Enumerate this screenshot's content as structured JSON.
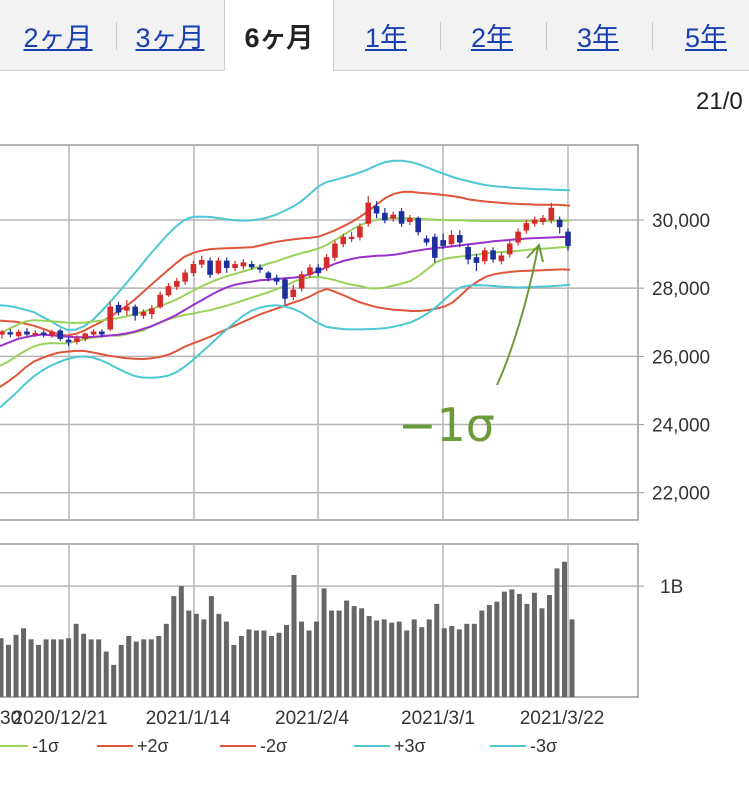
{
  "tabs": [
    {
      "label": "2ヶ月",
      "active": false
    },
    {
      "label": "3ヶ月",
      "active": false
    },
    {
      "label": "6ヶ月",
      "active": true
    },
    {
      "label": "1年",
      "active": false
    },
    {
      "label": "2年",
      "active": false
    },
    {
      "label": "3年",
      "active": false
    },
    {
      "label": "5年",
      "active": false
    }
  ],
  "date_label": "21/0",
  "annotation": "−1σ",
  "chart_data": [
    {
      "type": "candlestick",
      "ylim": [
        21200,
        32200
      ],
      "yticks": [
        22000,
        24000,
        26000,
        28000,
        30000
      ],
      "ytick_labels": [
        "22,000",
        "24,000",
        "26,000",
        "28,000",
        "30,000"
      ],
      "x_labels": [
        "2020/12/21",
        "2021/1/14",
        "2021/2/4",
        "2021/3/1",
        "2021/3/22"
      ],
      "x_label_partial": "30",
      "grid": true,
      "colors": {
        "up": "#d62b2b",
        "down": "#1c2f9c",
        "mid": "#9a2fd0",
        "s1": "#9ad25a",
        "s2": "#e0563a",
        "s3": "#4cc8d4"
      },
      "series": [
        {
          "name": "-1σ",
          "values": [
            25720,
            25850,
            26010,
            26160,
            26290,
            26360,
            26390,
            26380,
            26380,
            26440,
            26500,
            26550,
            26570,
            26620,
            26600,
            26640,
            26700,
            26750,
            26870,
            26990,
            27080,
            27150,
            27220,
            27250,
            27310,
            27350,
            27420,
            27480,
            27560,
            27640,
            27720,
            27800,
            27880,
            27970,
            28070,
            28180,
            28280,
            28320,
            28330,
            28290,
            28230,
            28160,
            28100,
            28060,
            28000,
            27990,
            28020,
            28080,
            28140,
            28210,
            28370,
            28560,
            28760,
            28860,
            28900,
            28930,
            28960,
            28990,
            29020,
            29050,
            29060,
            29080,
            29100,
            29130,
            29150,
            29160,
            29180,
            29200,
            29200
          ]
        },
        {
          "name": "+2σ",
          "values": [
            27050,
            27030,
            27010,
            26960,
            26900,
            26820,
            26730,
            26650,
            26610,
            26660,
            26750,
            26880,
            27000,
            27140,
            27300,
            27460,
            27650,
            27870,
            28090,
            28310,
            28520,
            28730,
            28920,
            29030,
            29100,
            29140,
            29160,
            29170,
            29180,
            29190,
            29200,
            29250,
            29310,
            29360,
            29400,
            29430,
            29460,
            29480,
            29510,
            29600,
            29700,
            29820,
            29950,
            30100,
            30270,
            30470,
            30650,
            30770,
            30820,
            30830,
            30800,
            30780,
            30760,
            30730,
            30700,
            30660,
            30600,
            30570,
            30540,
            30520,
            30500,
            30480,
            30470,
            30460,
            30450,
            30450,
            30450,
            30440,
            30420
          ]
        },
        {
          "name": "-2σ",
          "values": [
            25100,
            25270,
            25450,
            25670,
            25840,
            25950,
            26040,
            26110,
            26140,
            26160,
            26160,
            26120,
            26070,
            26020,
            25980,
            25950,
            25930,
            25920,
            25940,
            25980,
            26040,
            26150,
            26280,
            26380,
            26470,
            26570,
            26680,
            26790,
            26900,
            27010,
            27120,
            27230,
            27320,
            27400,
            27490,
            27580,
            27660,
            27760,
            27890,
            27980,
            27890,
            27790,
            27680,
            27580,
            27510,
            27440,
            27400,
            27370,
            27350,
            27330,
            27330,
            27350,
            27400,
            27460,
            27580,
            27800,
            28030,
            28200,
            28340,
            28410,
            28450,
            28480,
            28500,
            28510,
            28520,
            28530,
            28540,
            28550,
            28540
          ]
        },
        {
          "name": "+3σ",
          "values": [
            27500,
            27480,
            27430,
            27370,
            27300,
            27170,
            27040,
            26890,
            26780,
            26780,
            26880,
            27050,
            27300,
            27560,
            27840,
            28130,
            28420,
            28720,
            29020,
            29300,
            29570,
            29810,
            30000,
            30090,
            30100,
            30090,
            30060,
            30020,
            29990,
            29980,
            29990,
            30020,
            30080,
            30160,
            30280,
            30400,
            30560,
            30770,
            30990,
            31120,
            31180,
            31250,
            31320,
            31400,
            31500,
            31610,
            31700,
            31740,
            31740,
            31700,
            31630,
            31540,
            31440,
            31350,
            31260,
            31190,
            31130,
            31070,
            31020,
            30990,
            30970,
            30950,
            30930,
            30920,
            30900,
            30900,
            30890,
            30880,
            30870
          ]
        },
        {
          "name": "-3σ",
          "values": [
            24500,
            24720,
            24950,
            25190,
            25410,
            25580,
            25720,
            25830,
            25920,
            25980,
            26000,
            25970,
            25890,
            25780,
            25650,
            25530,
            25430,
            25380,
            25370,
            25390,
            25430,
            25530,
            25690,
            25890,
            26110,
            26330,
            26560,
            26780,
            26990,
            27190,
            27340,
            27430,
            27480,
            27500,
            27460,
            27390,
            27280,
            27120,
            26970,
            26860,
            26830,
            26800,
            26790,
            26790,
            26800,
            26810,
            26830,
            26870,
            26930,
            27000,
            27110,
            27260,
            27440,
            27660,
            27880,
            28030,
            28080,
            28090,
            28080,
            28060,
            28040,
            28030,
            28020,
            28030,
            28040,
            28050,
            28060,
            28080,
            28100
          ]
        },
        {
          "name": "mid",
          "values": [
            26300,
            26400,
            26500,
            26560,
            26610,
            26640,
            26620,
            26600,
            26580,
            26560,
            26560,
            26570,
            26590,
            26610,
            26630,
            26670,
            26720,
            26800,
            26880,
            26980,
            27090,
            27210,
            27350,
            27500,
            27640,
            27780,
            27910,
            28020,
            28100,
            28150,
            28190,
            28230,
            28250,
            28270,
            28290,
            28310,
            28340,
            28420,
            28510,
            28620,
            28720,
            28800,
            28860,
            28910,
            28930,
            28950,
            28960,
            28980,
            29020,
            29070,
            29110,
            29150,
            29180,
            29200,
            29230,
            29260,
            29290,
            29320,
            29350,
            29380,
            29400,
            29420,
            29440,
            29460,
            29470,
            29480,
            29490,
            29500,
            29500
          ]
        },
        {
          "name": "+1σ",
          "values": [
            26670,
            26800,
            26920,
            27020,
            27060,
            27050,
            27030,
            27010,
            26990,
            26980,
            26990,
            27020,
            27050,
            27080,
            27120,
            27170,
            27230,
            27300,
            27380,
            27470,
            27560,
            27660,
            27790,
            27920,
            28050,
            28160,
            28260,
            28350,
            28420,
            28490,
            28560,
            28640,
            28720,
            28790,
            28880,
            28960,
            29030,
            29090,
            29160,
            29270,
            29420,
            29570,
            29720,
            29850,
            29950,
            30010,
            30050,
            30060,
            30060,
            30050,
            30040,
            30020,
            30010,
            30000,
            29990,
            29990,
            29980,
            29970,
            29970,
            29970,
            29970,
            29970,
            29970,
            29970,
            29970,
            29970,
            29980,
            29980,
            29980
          ]
        }
      ],
      "candles": [
        {
          "o": 26650,
          "c": 26720,
          "h": 26780,
          "l": 26520
        },
        {
          "o": 26700,
          "c": 26650,
          "h": 26800,
          "l": 26560
        },
        {
          "o": 26600,
          "c": 26710,
          "h": 26790,
          "l": 26550
        },
        {
          "o": 26720,
          "c": 26650,
          "h": 26830,
          "l": 26600
        },
        {
          "o": 26650,
          "c": 26680,
          "h": 26760,
          "l": 26570
        },
        {
          "o": 26690,
          "c": 26640,
          "h": 26760,
          "l": 26560
        },
        {
          "o": 26620,
          "c": 26710,
          "h": 26780,
          "l": 26540
        },
        {
          "o": 26750,
          "c": 26520,
          "h": 26810,
          "l": 26450
        },
        {
          "o": 26480,
          "c": 26420,
          "h": 26560,
          "l": 26300
        },
        {
          "o": 26430,
          "c": 26520,
          "h": 26620,
          "l": 26350
        },
        {
          "o": 26520,
          "c": 26660,
          "h": 26700,
          "l": 26440
        },
        {
          "o": 26650,
          "c": 26720,
          "h": 26800,
          "l": 26590
        },
        {
          "o": 26720,
          "c": 26650,
          "h": 26790,
          "l": 26560
        },
        {
          "o": 26800,
          "c": 27450,
          "h": 27600,
          "l": 26750
        },
        {
          "o": 27500,
          "c": 27300,
          "h": 27600,
          "l": 27200
        },
        {
          "o": 27350,
          "c": 27450,
          "h": 27650,
          "l": 27200
        },
        {
          "o": 27450,
          "c": 27200,
          "h": 27520,
          "l": 27050
        },
        {
          "o": 27200,
          "c": 27300,
          "h": 27380,
          "l": 27100
        },
        {
          "o": 27250,
          "c": 27400,
          "h": 27500,
          "l": 27100
        },
        {
          "o": 27450,
          "c": 27800,
          "h": 27900,
          "l": 27400
        },
        {
          "o": 27800,
          "c": 28050,
          "h": 28150,
          "l": 27750
        },
        {
          "o": 28050,
          "c": 28200,
          "h": 28300,
          "l": 27950
        },
        {
          "o": 28200,
          "c": 28450,
          "h": 28550,
          "l": 28100
        },
        {
          "o": 28450,
          "c": 28700,
          "h": 28800,
          "l": 28350
        },
        {
          "o": 28700,
          "c": 28820,
          "h": 28950,
          "l": 28600
        },
        {
          "o": 28800,
          "c": 28400,
          "h": 28900,
          "l": 28300
        },
        {
          "o": 28450,
          "c": 28800,
          "h": 28900,
          "l": 28400
        },
        {
          "o": 28800,
          "c": 28600,
          "h": 28900,
          "l": 28450
        },
        {
          "o": 28600,
          "c": 28700,
          "h": 28800,
          "l": 28500
        },
        {
          "o": 28650,
          "c": 28750,
          "h": 28850,
          "l": 28550
        },
        {
          "o": 28700,
          "c": 28620,
          "h": 28800,
          "l": 28550
        },
        {
          "o": 28600,
          "c": 28550,
          "h": 28700,
          "l": 28450
        },
        {
          "o": 28450,
          "c": 28300,
          "h": 28500,
          "l": 28200
        },
        {
          "o": 28300,
          "c": 28200,
          "h": 28400,
          "l": 28100
        },
        {
          "o": 28250,
          "c": 27700,
          "h": 28300,
          "l": 27500
        },
        {
          "o": 27750,
          "c": 27950,
          "h": 28100,
          "l": 27650
        },
        {
          "o": 28000,
          "c": 28400,
          "h": 28500,
          "l": 27900
        },
        {
          "o": 28400,
          "c": 28600,
          "h": 28700,
          "l": 28300
        },
        {
          "o": 28600,
          "c": 28450,
          "h": 28700,
          "l": 28350
        },
        {
          "o": 28600,
          "c": 28900,
          "h": 29000,
          "l": 28500
        },
        {
          "o": 28900,
          "c": 29300,
          "h": 29400,
          "l": 28800
        },
        {
          "o": 29300,
          "c": 29500,
          "h": 29600,
          "l": 29200
        },
        {
          "o": 29450,
          "c": 29500,
          "h": 29650,
          "l": 29350
        },
        {
          "o": 29500,
          "c": 29800,
          "h": 29900,
          "l": 29400
        },
        {
          "o": 29900,
          "c": 30500,
          "h": 30700,
          "l": 29800
        },
        {
          "o": 30400,
          "c": 30200,
          "h": 30550,
          "l": 30050
        },
        {
          "o": 30200,
          "c": 30000,
          "h": 30350,
          "l": 29900
        },
        {
          "o": 30050,
          "c": 30150,
          "h": 30250,
          "l": 29950
        },
        {
          "o": 30250,
          "c": 29900,
          "h": 30350,
          "l": 29800
        },
        {
          "o": 29950,
          "c": 30050,
          "h": 30150,
          "l": 29850
        },
        {
          "o": 30050,
          "c": 29650,
          "h": 30100,
          "l": 29550
        },
        {
          "o": 29450,
          "c": 29350,
          "h": 29550,
          "l": 29250
        },
        {
          "o": 29500,
          "c": 28900,
          "h": 29600,
          "l": 28750
        },
        {
          "o": 29400,
          "c": 29250,
          "h": 29600,
          "l": 29150
        },
        {
          "o": 29300,
          "c": 29550,
          "h": 29700,
          "l": 29200
        },
        {
          "o": 29550,
          "c": 29350,
          "h": 29700,
          "l": 29200
        },
        {
          "o": 29200,
          "c": 28850,
          "h": 29300,
          "l": 28700
        },
        {
          "o": 28900,
          "c": 28750,
          "h": 29000,
          "l": 28500
        },
        {
          "o": 28800,
          "c": 29100,
          "h": 29200,
          "l": 28700
        },
        {
          "o": 29100,
          "c": 28850,
          "h": 29200,
          "l": 28750
        },
        {
          "o": 28800,
          "c": 28950,
          "h": 29050,
          "l": 28700
        },
        {
          "o": 29000,
          "c": 29300,
          "h": 29400,
          "l": 28900
        },
        {
          "o": 29350,
          "c": 29650,
          "h": 29750,
          "l": 29250
        },
        {
          "o": 29700,
          "c": 29900,
          "h": 30000,
          "l": 29600
        },
        {
          "o": 29900,
          "c": 30000,
          "h": 30100,
          "l": 29800
        },
        {
          "o": 29950,
          "c": 30050,
          "h": 30150,
          "l": 29850
        },
        {
          "o": 30000,
          "c": 30350,
          "h": 30500,
          "l": 29900
        },
        {
          "o": 30000,
          "c": 29800,
          "h": 30100,
          "l": 29600
        },
        {
          "o": 29650,
          "c": 29250,
          "h": 29750,
          "l": 29100
        }
      ]
    },
    {
      "type": "bar",
      "ymax": 1.38,
      "ytick_labels": [
        "1B"
      ],
      "yticks": [
        1.0
      ],
      "values": [
        0.53,
        0.47,
        0.56,
        0.62,
        0.52,
        0.47,
        0.52,
        0.52,
        0.52,
        0.53,
        0.66,
        0.57,
        0.52,
        0.52,
        0.41,
        0.29,
        0.47,
        0.55,
        0.5,
        0.52,
        0.52,
        0.55,
        0.66,
        0.91,
        1.0,
        0.78,
        0.75,
        0.7,
        0.91,
        0.75,
        0.68,
        0.47,
        0.55,
        0.61,
        0.6,
        0.6,
        0.55,
        0.58,
        0.65,
        1.1,
        0.68,
        0.6,
        0.68,
        0.98,
        0.78,
        0.78,
        0.87,
        0.82,
        0.8,
        0.73,
        0.69,
        0.7,
        0.67,
        0.68,
        0.6,
        0.7,
        0.63,
        0.7,
        0.84,
        0.62,
        0.64,
        0.61,
        0.66,
        0.66,
        0.78,
        0.83,
        0.86,
        0.95,
        0.97,
        0.93,
        0.84,
        0.94,
        0.8,
        0.92,
        1.16,
        1.22,
        0.7
      ]
    }
  ],
  "legend": [
    {
      "label": "-1σ",
      "color": "#9ad25a"
    },
    {
      "label": "+2σ",
      "color": "#e0563a"
    },
    {
      "label": "-2σ",
      "color": "#e0563a"
    },
    {
      "label": "+3σ",
      "color": "#4cc8d4"
    },
    {
      "label": "-3σ",
      "color": "#4cc8d4"
    }
  ]
}
